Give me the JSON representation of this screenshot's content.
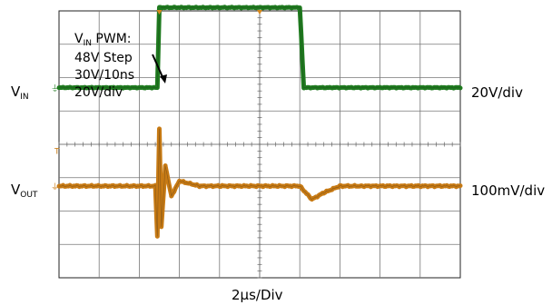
{
  "chart_data": {
    "type": "line",
    "title": "",
    "x_scale": "2µs/Div",
    "x_divisions": 10,
    "y_divisions": 8,
    "grid": true,
    "series": [
      {
        "name": "VIN",
        "color": "#1f7a1f",
        "scale": "20V/div",
        "unit": "V",
        "x_us": [
          0,
          4.9,
          5.0,
          12.0,
          12.2,
          20
        ],
        "y": [
          0,
          0,
          48,
          48,
          0,
          0
        ]
      },
      {
        "name": "VOUT",
        "color": "#c77a14",
        "scale": "100mV/div",
        "unit": "mV",
        "x_us": [
          0,
          4.8,
          4.9,
          5.0,
          5.1,
          5.3,
          5.6,
          6.0,
          7.0,
          8.0,
          12.0,
          12.6,
          13.2,
          14.0,
          15.0,
          20
        ],
        "y": [
          0,
          0,
          -150,
          170,
          -120,
          60,
          -30,
          15,
          0,
          0,
          0,
          -40,
          -20,
          0,
          0,
          0
        ]
      }
    ]
  },
  "labels": {
    "vin_main": "V",
    "vin_sub": "IN",
    "vout_main": "V",
    "vout_sub": "OUT",
    "vin_scale": "20V/div",
    "vout_scale": "100mV/div",
    "time_scale": "2μs/Div"
  },
  "annotation": {
    "line1_main": "V",
    "line1_sub": "IN",
    "line1_rest": " PWM:",
    "line2": "48V Step",
    "line3": "30V/10ns",
    "line4": "20V/div"
  }
}
